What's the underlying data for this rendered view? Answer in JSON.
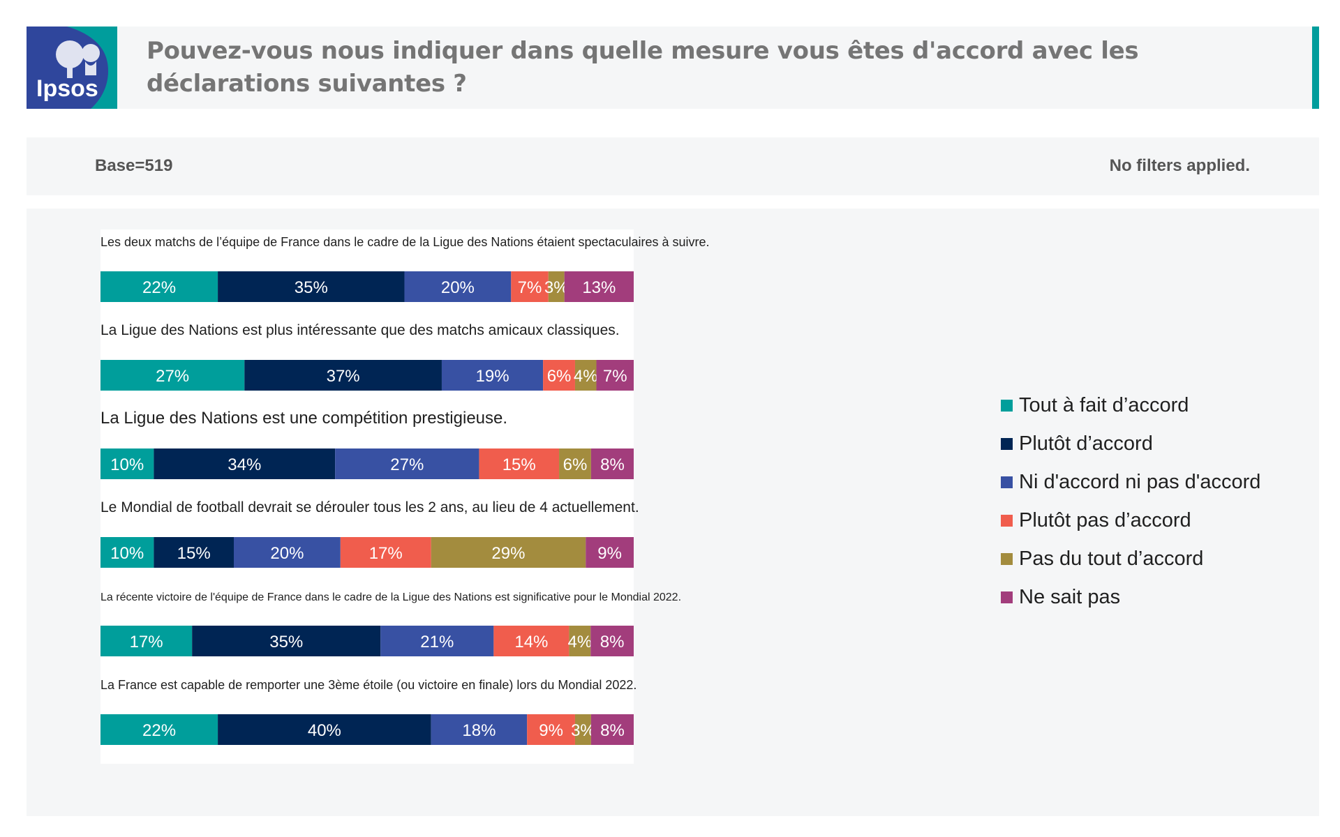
{
  "header": {
    "logo_text": "Ipsos",
    "title": "Pouvez-vous nous indiquer dans quelle mesure vous êtes d'accord avec les déclarations suivantes ?"
  },
  "meta": {
    "base": "Base=519",
    "filters": "No filters applied."
  },
  "colors": {
    "brand": "#009d9c",
    "panel_bg": "#f5f6f7"
  },
  "chart_data": {
    "type": "bar",
    "orientation": "horizontal",
    "stacked": true,
    "normalized": true,
    "value_unit": "%",
    "legend_position": "right",
    "series": [
      {
        "name": "Tout à fait d’accord",
        "color": "#009e9b"
      },
      {
        "name": "Plutôt d’accord",
        "color": "#002554"
      },
      {
        "name": "Ni d'accord ni pas d'accord",
        "color": "#3851a3"
      },
      {
        "name": "Plutôt pas d’accord",
        "color": "#f05d4d"
      },
      {
        "name": "Pas du tout d’accord",
        "color": "#a38c3e"
      },
      {
        "name": "Ne sait pas",
        "color": "#a23d7c"
      }
    ],
    "categories": [
      {
        "label": "Les deux matchs de l’équipe de France dans le cadre de la Ligue des Nations étaient spectaculaires à suivre.",
        "label_size": 18,
        "values": [
          22,
          35,
          20,
          7,
          3,
          13
        ]
      },
      {
        "label": "La Ligue des Nations est plus intéressante que des matchs amicaux classiques.",
        "label_size": 21,
        "values": [
          27,
          37,
          19,
          6,
          4,
          7
        ]
      },
      {
        "label": "La Ligue des Nations est une compétition prestigieuse.",
        "label_size": 24,
        "values": [
          10,
          34,
          27,
          15,
          6,
          8
        ]
      },
      {
        "label": "Le Mondial de football devrait se dérouler tous les 2 ans, au lieu de 4 actuellement.",
        "label_size": 21,
        "values": [
          10,
          15,
          20,
          17,
          29,
          9
        ]
      },
      {
        "label": "La récente victoire de l'équipe de France dans le cadre de la Ligue des Nations est significative pour le Mondial 2022.",
        "label_size": 16,
        "values": [
          17,
          35,
          21,
          14,
          4,
          8
        ]
      },
      {
        "label": "La France est capable de remporter une 3ème étoile (ou victoire en finale) lors du Mondial 2022.",
        "label_size": 18,
        "values": [
          22,
          40,
          18,
          9,
          3,
          8
        ]
      }
    ]
  }
}
